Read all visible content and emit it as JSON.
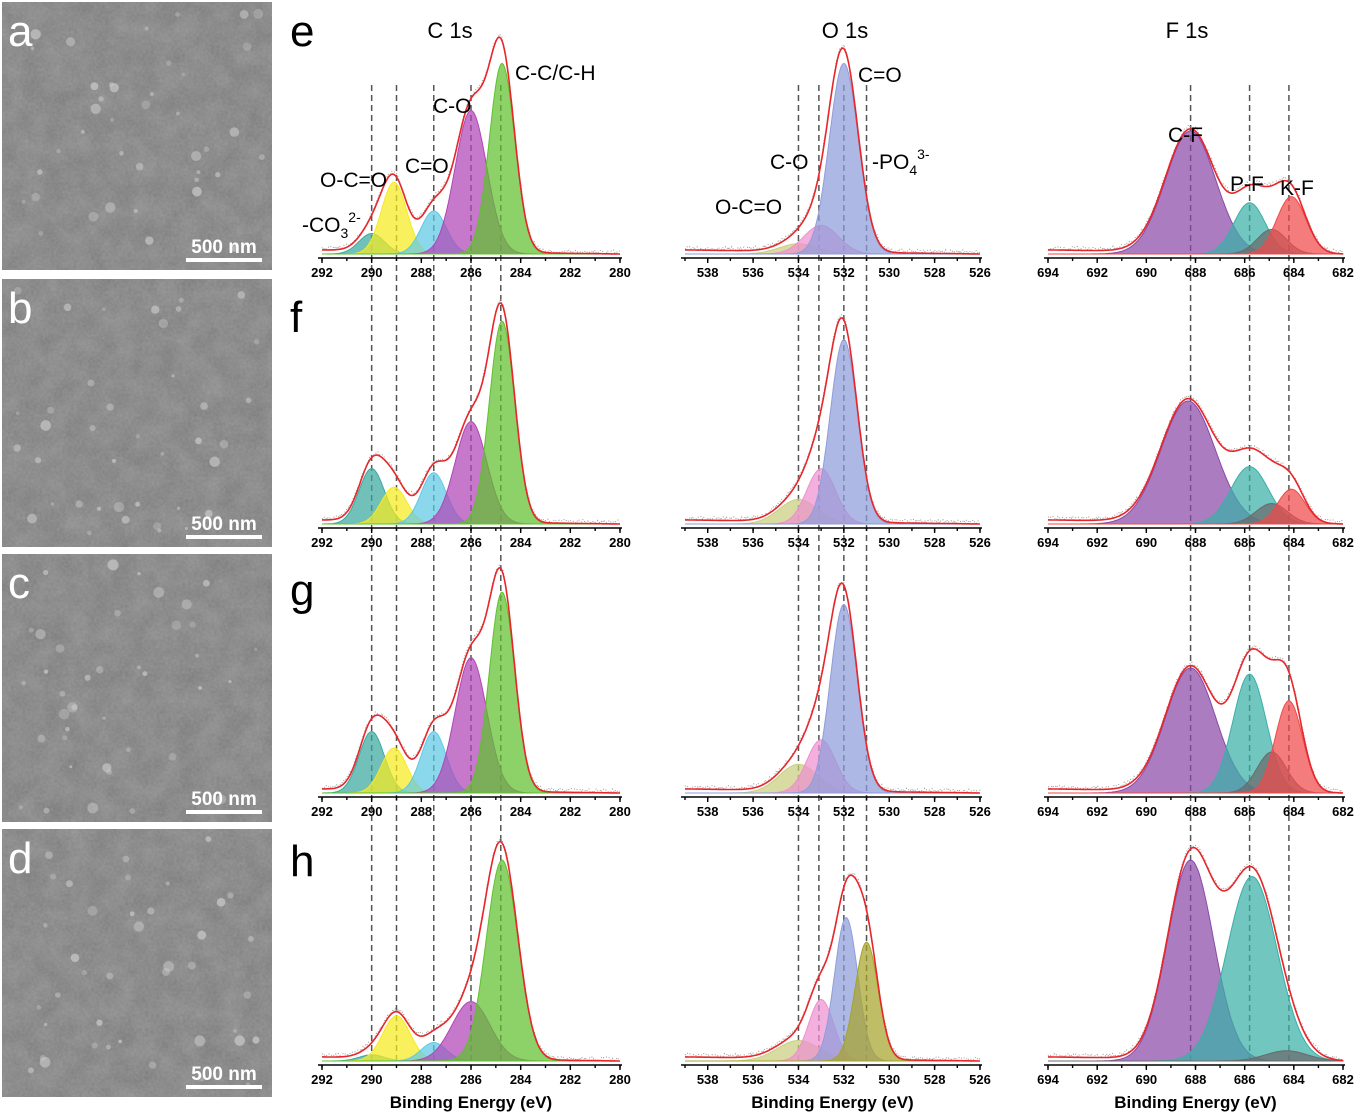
{
  "panels": {
    "sem": [
      {
        "label": "a",
        "scale": "500 nm"
      },
      {
        "label": "b",
        "scale": "500 nm"
      },
      {
        "label": "c",
        "scale": "500 nm"
      },
      {
        "label": "d",
        "scale": "500 nm"
      }
    ],
    "xps_rows": [
      "e",
      "f",
      "g",
      "h"
    ],
    "xps_columns": [
      "C 1s",
      "O 1s",
      "F 1s"
    ]
  },
  "colors": {
    "envelope": "#e8262a",
    "raw_data": "#999999",
    "green": "#5fc12e",
    "magenta": "#b045b5",
    "cyan": "#5ec9e6",
    "yellow": "#f7ea20",
    "teal": "#3aa99f",
    "lavender": "#8f9ddb",
    "pink": "#ee90d0",
    "khaki": "#c9cf7e",
    "olive": "#a7a42c",
    "purple": "#8a4aa8",
    "tealF": "#3ab0a8",
    "gray": "#6a6a6a",
    "red": "#f04a4a"
  },
  "chart_data": [
    {
      "type": "area",
      "title": "C 1s",
      "xlabel": "Binding Energy (eV)",
      "x_range": [
        292,
        280
      ],
      "x_reversed": true,
      "ticks": [
        292,
        290,
        288,
        286,
        284,
        282,
        280
      ],
      "peak_labels": [
        {
          "text": "-CO32-",
          "sup": "2-",
          "sub": "3",
          "base": "-CO",
          "position_eV": 290.0
        },
        {
          "text": "O-C=O",
          "position_eV": 289.0
        },
        {
          "text": "C=O",
          "position_eV": 287.5
        },
        {
          "text": "C-O",
          "position_eV": 286.0
        },
        {
          "text": "C-C/C-H",
          "position_eV": 284.8
        }
      ],
      "reference_lines_eV": [
        290.0,
        289.0,
        287.5,
        286.0,
        284.8
      ],
      "rows": [
        {
          "row": "e",
          "components": [
            {
              "center": 290.0,
              "fwhm": 1.2,
              "height": 0.1,
              "color": "teal"
            },
            {
              "center": 289.1,
              "fwhm": 1.2,
              "height": 0.35,
              "color": "yellow"
            },
            {
              "center": 287.5,
              "fwhm": 1.2,
              "height": 0.21,
              "color": "cyan"
            },
            {
              "center": 286.0,
              "fwhm": 1.5,
              "height": 0.7,
              "color": "magenta"
            },
            {
              "center": 284.75,
              "fwhm": 1.2,
              "height": 0.93,
              "color": "green"
            }
          ]
        },
        {
          "row": "f",
          "components": [
            {
              "center": 290.0,
              "fwhm": 1.2,
              "height": 0.27,
              "color": "teal"
            },
            {
              "center": 289.1,
              "fwhm": 1.2,
              "height": 0.18,
              "color": "yellow"
            },
            {
              "center": 287.5,
              "fwhm": 1.2,
              "height": 0.25,
              "color": "cyan"
            },
            {
              "center": 286.0,
              "fwhm": 1.5,
              "height": 0.5,
              "color": "magenta"
            },
            {
              "center": 284.75,
              "fwhm": 1.2,
              "height": 0.99,
              "color": "green"
            }
          ]
        },
        {
          "row": "g",
          "components": [
            {
              "center": 290.0,
              "fwhm": 1.2,
              "height": 0.3,
              "color": "teal"
            },
            {
              "center": 289.1,
              "fwhm": 1.2,
              "height": 0.22,
              "color": "yellow"
            },
            {
              "center": 287.5,
              "fwhm": 1.2,
              "height": 0.3,
              "color": "cyan"
            },
            {
              "center": 286.0,
              "fwhm": 1.5,
              "height": 0.66,
              "color": "magenta"
            },
            {
              "center": 284.75,
              "fwhm": 1.2,
              "height": 0.98,
              "color": "green"
            }
          ]
        },
        {
          "row": "h",
          "components": [
            {
              "center": 290.0,
              "fwhm": 1.2,
              "height": 0.03,
              "color": "teal"
            },
            {
              "center": 289.0,
              "fwhm": 1.3,
              "height": 0.22,
              "color": "yellow"
            },
            {
              "center": 287.5,
              "fwhm": 1.2,
              "height": 0.09,
              "color": "cyan"
            },
            {
              "center": 286.0,
              "fwhm": 1.8,
              "height": 0.29,
              "color": "magenta"
            },
            {
              "center": 284.75,
              "fwhm": 1.5,
              "height": 0.98,
              "color": "green"
            }
          ]
        }
      ]
    },
    {
      "type": "area",
      "title": "O 1s",
      "xlabel": "Binding Energy (eV)",
      "x_range": [
        539,
        526
      ],
      "x_reversed": true,
      "ticks": [
        538,
        536,
        534,
        532,
        530,
        528,
        526
      ],
      "peak_labels": [
        {
          "text": "O-C=O",
          "position_eV": 534.0
        },
        {
          "text": "C-O",
          "position_eV": 533.1
        },
        {
          "text": "C=O",
          "position_eV": 532.0
        },
        {
          "text": "-PO43-",
          "base": "-PO",
          "sub": "4",
          "sup": "3-",
          "position_eV": 531.0
        }
      ],
      "reference_lines_eV": [
        534.0,
        533.1,
        532.0,
        531.0
      ],
      "rows": [
        {
          "row": "e",
          "components": [
            {
              "center": 534.0,
              "fwhm": 2.0,
              "height": 0.05,
              "color": "khaki"
            },
            {
              "center": 533.0,
              "fwhm": 1.8,
              "height": 0.14,
              "color": "pink"
            },
            {
              "center": 532.0,
              "fwhm": 1.5,
              "height": 0.93,
              "color": "lavender"
            }
          ]
        },
        {
          "row": "f",
          "components": [
            {
              "center": 534.0,
              "fwhm": 2.0,
              "height": 0.12,
              "color": "khaki"
            },
            {
              "center": 533.0,
              "fwhm": 1.5,
              "height": 0.27,
              "color": "pink"
            },
            {
              "center": 532.0,
              "fwhm": 1.4,
              "height": 0.9,
              "color": "lavender"
            }
          ]
        },
        {
          "row": "g",
          "components": [
            {
              "center": 534.0,
              "fwhm": 2.0,
              "height": 0.14,
              "color": "khaki"
            },
            {
              "center": 533.0,
              "fwhm": 1.5,
              "height": 0.26,
              "color": "pink"
            },
            {
              "center": 532.0,
              "fwhm": 1.4,
              "height": 0.92,
              "color": "lavender"
            }
          ]
        },
        {
          "row": "h",
          "components": [
            {
              "center": 534.0,
              "fwhm": 2.2,
              "height": 0.1,
              "color": "khaki"
            },
            {
              "center": 533.0,
              "fwhm": 1.3,
              "height": 0.3,
              "color": "pink"
            },
            {
              "center": 531.9,
              "fwhm": 1.2,
              "height": 0.7,
              "color": "lavender"
            },
            {
              "center": 531.0,
              "fwhm": 1.2,
              "height": 0.58,
              "color": "olive"
            }
          ]
        }
      ]
    },
    {
      "type": "area",
      "title": "F 1s",
      "xlabel": "Binding Energy (eV)",
      "x_range": [
        694,
        682
      ],
      "x_reversed": true,
      "ticks": [
        694,
        692,
        690,
        688,
        686,
        684,
        682
      ],
      "peak_labels": [
        {
          "text": "C-F",
          "position_eV": 688.2
        },
        {
          "text": "P-F",
          "position_eV": 685.8
        },
        {
          "text": "K-F",
          "position_eV": 684.2
        }
      ],
      "reference_lines_eV": [
        688.2,
        685.8,
        684.2
      ],
      "rows": [
        {
          "row": "e",
          "components": [
            {
              "center": 688.2,
              "fwhm": 2.4,
              "height": 0.6,
              "color": "purple"
            },
            {
              "center": 685.8,
              "fwhm": 1.5,
              "height": 0.25,
              "color": "tealF"
            },
            {
              "center": 684.9,
              "fwhm": 1.4,
              "height": 0.12,
              "color": "gray"
            },
            {
              "center": 684.1,
              "fwhm": 1.4,
              "height": 0.28,
              "color": "red"
            }
          ]
        },
        {
          "row": "f",
          "components": [
            {
              "center": 688.3,
              "fwhm": 2.6,
              "height": 0.6,
              "color": "purple"
            },
            {
              "center": 685.8,
              "fwhm": 1.8,
              "height": 0.28,
              "color": "tealF"
            },
            {
              "center": 684.9,
              "fwhm": 1.5,
              "height": 0.1,
              "color": "gray"
            },
            {
              "center": 684.1,
              "fwhm": 1.3,
              "height": 0.17,
              "color": "red"
            }
          ]
        },
        {
          "row": "g",
          "components": [
            {
              "center": 688.2,
              "fwhm": 2.4,
              "height": 0.61,
              "color": "purple"
            },
            {
              "center": 685.8,
              "fwhm": 1.6,
              "height": 0.58,
              "color": "tealF"
            },
            {
              "center": 684.9,
              "fwhm": 1.4,
              "height": 0.2,
              "color": "gray"
            },
            {
              "center": 684.2,
              "fwhm": 1.3,
              "height": 0.45,
              "color": "red"
            }
          ]
        },
        {
          "row": "h",
          "components": [
            {
              "center": 688.2,
              "fwhm": 2.2,
              "height": 0.98,
              "color": "purple"
            },
            {
              "center": 685.7,
              "fwhm": 2.4,
              "height": 0.9,
              "color": "tealF"
            },
            {
              "center": 684.3,
              "fwhm": 2.0,
              "height": 0.05,
              "color": "gray"
            }
          ]
        }
      ]
    }
  ]
}
